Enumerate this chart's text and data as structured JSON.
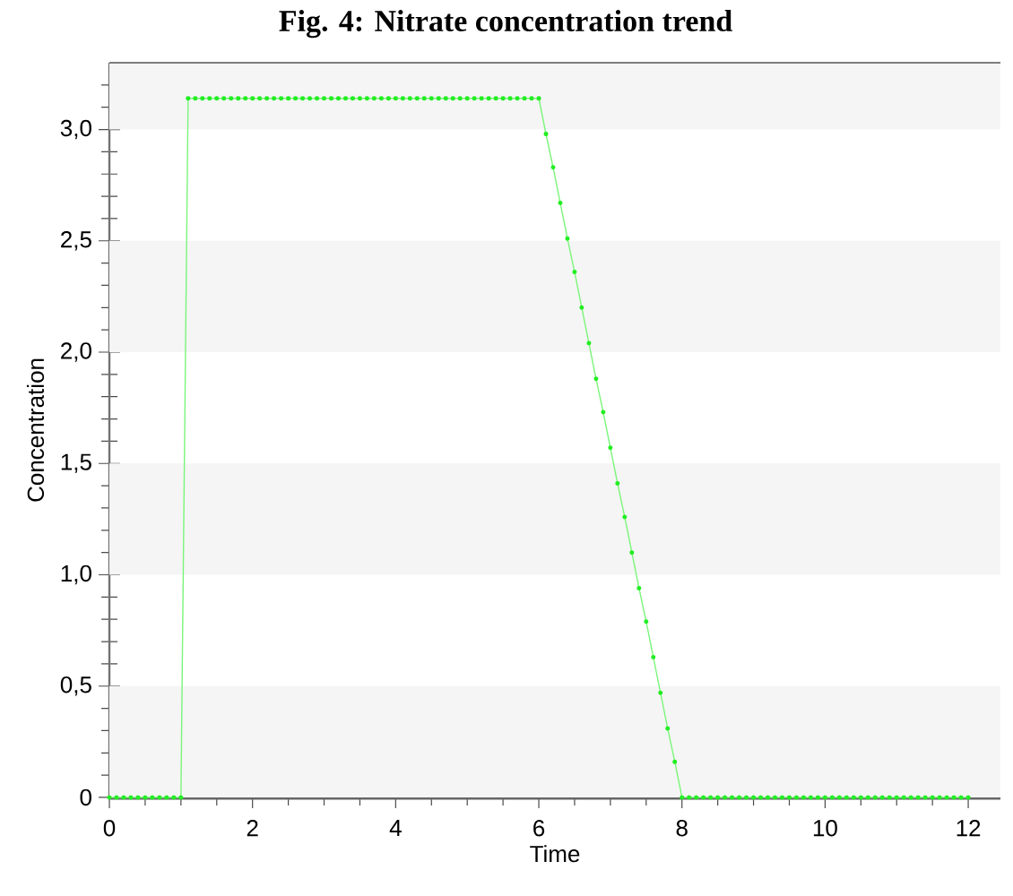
{
  "chart_data": {
    "type": "line",
    "title": "Fig. 4: Nitrate concentration trend",
    "xlabel": "Time",
    "ylabel": "Concentration",
    "x": [
      0,
      0.1,
      0.2,
      0.3,
      0.4,
      0.5,
      0.6,
      0.7,
      0.8,
      0.9,
      1.0,
      1.1,
      1.2,
      1.3,
      1.4,
      1.5,
      1.6,
      1.7,
      1.8,
      1.9,
      2.0,
      2.1,
      2.2,
      2.3,
      2.4,
      2.5,
      2.6,
      2.7,
      2.8,
      2.9,
      3.0,
      3.1,
      3.2,
      3.3,
      3.4,
      3.5,
      3.6,
      3.7,
      3.8,
      3.9,
      4.0,
      4.1,
      4.2,
      4.3,
      4.4,
      4.5,
      4.6,
      4.7,
      4.8,
      4.9,
      5.0,
      5.1,
      5.2,
      5.3,
      5.4,
      5.5,
      5.6,
      5.7,
      5.8,
      5.9,
      6.0,
      6.1,
      6.2,
      6.3,
      6.4,
      6.5,
      6.6,
      6.7,
      6.8,
      6.9,
      7.0,
      7.1,
      7.2,
      7.3,
      7.4,
      7.5,
      7.6,
      7.7,
      7.8,
      7.9,
      8.0,
      8.1,
      8.2,
      8.3,
      8.4,
      8.5,
      8.6,
      8.7,
      8.8,
      8.9,
      9.0,
      9.1,
      9.2,
      9.3,
      9.4,
      9.5,
      9.6,
      9.7,
      9.8,
      9.9,
      10.0,
      10.1,
      10.2,
      10.3,
      10.4,
      10.5,
      10.6,
      10.7,
      10.8,
      10.9,
      11.0,
      11.1,
      11.2,
      11.3,
      11.4,
      11.5,
      11.6,
      11.7,
      11.8,
      11.9,
      12.0
    ],
    "series": [
      {
        "color": "#22ee22",
        "values": [
          0,
          0,
          0,
          0,
          0,
          0,
          0,
          0,
          0,
          0,
          0,
          3.14,
          3.14,
          3.14,
          3.14,
          3.14,
          3.14,
          3.14,
          3.14,
          3.14,
          3.14,
          3.14,
          3.14,
          3.14,
          3.14,
          3.14,
          3.14,
          3.14,
          3.14,
          3.14,
          3.14,
          3.14,
          3.14,
          3.14,
          3.14,
          3.14,
          3.14,
          3.14,
          3.14,
          3.14,
          3.14,
          3.14,
          3.14,
          3.14,
          3.14,
          3.14,
          3.14,
          3.14,
          3.14,
          3.14,
          3.14,
          3.14,
          3.14,
          3.14,
          3.14,
          3.14,
          3.14,
          3.14,
          3.14,
          3.14,
          3.14,
          2.98,
          2.83,
          2.67,
          2.51,
          2.36,
          2.2,
          2.04,
          1.88,
          1.73,
          1.57,
          1.41,
          1.26,
          1.1,
          0.94,
          0.79,
          0.63,
          0.47,
          0.31,
          0.16,
          0,
          0,
          0,
          0,
          0,
          0,
          0,
          0,
          0,
          0,
          0,
          0,
          0,
          0,
          0,
          0,
          0,
          0,
          0,
          0,
          0,
          0,
          0,
          0,
          0,
          0,
          0,
          0,
          0,
          0,
          0,
          0,
          0,
          0,
          0,
          0,
          0,
          0,
          0,
          0,
          0
        ]
      }
    ],
    "xlim": [
      0,
      12.45
    ],
    "ylim": [
      0,
      3.3
    ],
    "xticks": [
      0,
      {
        "value": 0.5,
        "label": null
      },
      {
        "value": 1,
        "label": null
      },
      {
        "value": 1.5,
        "label": null
      },
      2,
      {
        "value": 2.5,
        "label": null
      },
      {
        "value": 3,
        "label": null
      },
      {
        "value": 3.5,
        "label": null
      },
      4,
      {
        "value": 4.5,
        "label": null
      },
      {
        "value": 5,
        "label": null
      },
      {
        "value": 5.5,
        "label": null
      },
      6,
      {
        "value": 6.5,
        "label": null
      },
      {
        "value": 7,
        "label": null
      },
      {
        "value": 7.5,
        "label": null
      },
      8,
      {
        "value": 8.5,
        "label": null
      },
      {
        "value": 9,
        "label": null
      },
      {
        "value": 9.5,
        "label": null
      },
      10,
      {
        "value": 10.5,
        "label": null
      },
      {
        "value": 11,
        "label": null
      },
      {
        "value": 11.5,
        "label": null
      },
      12
    ],
    "yticks": [
      0,
      {
        "value": 0.1,
        "label": null
      },
      {
        "value": 0.2,
        "label": null
      },
      {
        "value": 0.3,
        "label": null
      },
      {
        "value": 0.4,
        "label": null
      },
      {
        "value": 0.5,
        "label": "0,5"
      },
      {
        "value": 0.6,
        "label": null
      },
      {
        "value": 0.7,
        "label": null
      },
      {
        "value": 0.8,
        "label": null
      },
      {
        "value": 0.9,
        "label": null
      },
      {
        "value": 1.0,
        "label": "1,0"
      },
      {
        "value": 1.1,
        "label": null
      },
      {
        "value": 1.2,
        "label": null
      },
      {
        "value": 1.3,
        "label": null
      },
      {
        "value": 1.4,
        "label": null
      },
      {
        "value": 1.5,
        "label": "1,5"
      },
      {
        "value": 1.6,
        "label": null
      },
      {
        "value": 1.7,
        "label": null
      },
      {
        "value": 1.8,
        "label": null
      },
      {
        "value": 1.9,
        "label": null
      },
      {
        "value": 2.0,
        "label": "2,0"
      },
      {
        "value": 2.1,
        "label": null
      },
      {
        "value": 2.2,
        "label": null
      },
      {
        "value": 2.3,
        "label": null
      },
      {
        "value": 2.4,
        "label": null
      },
      {
        "value": 2.5,
        "label": "2,5"
      },
      {
        "value": 2.6,
        "label": null
      },
      {
        "value": 2.7,
        "label": null
      },
      {
        "value": 2.8,
        "label": null
      },
      {
        "value": 2.9,
        "label": null
      },
      {
        "value": 3.0,
        "label": "3,0"
      },
      {
        "value": 3.1,
        "label": null
      },
      {
        "value": 3.2,
        "label": null
      }
    ],
    "bands": [
      {
        "axis": "y",
        "from": 0,
        "to": 0.5,
        "color": "#f5f5f5"
      },
      {
        "axis": "y",
        "from": 1,
        "to": 1.5,
        "color": "#f5f5f5"
      },
      {
        "axis": "y",
        "from": 2,
        "to": 2.5,
        "color": "#f5f5f5"
      },
      {
        "axis": "y",
        "from": 3,
        "to": 3.3,
        "color": "#f5f5f5"
      }
    ],
    "marker": "circle"
  }
}
